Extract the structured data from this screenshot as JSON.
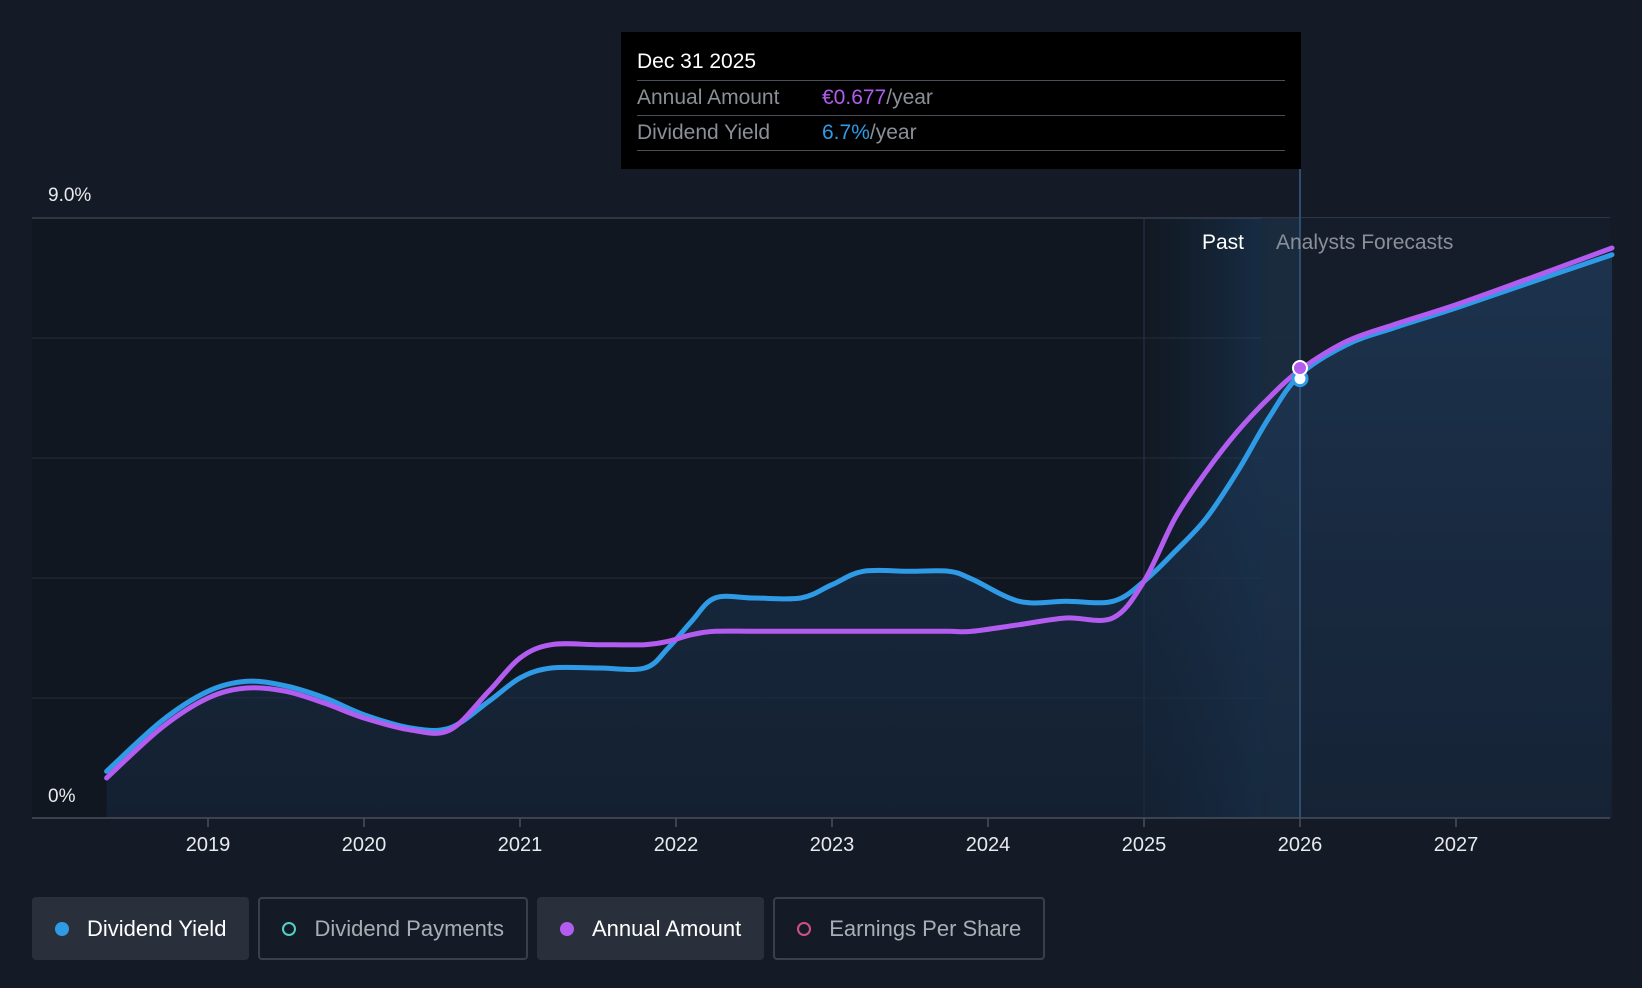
{
  "chart_data": {
    "type": "line",
    "y_axis": {
      "min": 0,
      "max": 9.0,
      "top_label": "9.0%",
      "bottom_label": "0%"
    },
    "x_ticks": [
      "2019",
      "2020",
      "2021",
      "2022",
      "2023",
      "2024",
      "2025",
      "2026",
      "2027"
    ],
    "x_range": [
      2018.35,
      2028.0
    ],
    "regions": {
      "past_label": "Past",
      "forecast_label": "Analysts Forecasts",
      "divider_x": 2026.0
    },
    "series": [
      {
        "name": "Dividend Yield",
        "color": "#2f9be6",
        "x": [
          2018.35,
          2018.7,
          2019.0,
          2019.25,
          2019.5,
          2019.75,
          2020.0,
          2020.3,
          2020.55,
          2020.8,
          2021.0,
          2021.2,
          2021.5,
          2021.8,
          2021.95,
          2022.1,
          2022.25,
          2022.5,
          2022.8,
          2023.0,
          2023.2,
          2023.5,
          2023.75,
          2023.9,
          2024.2,
          2024.5,
          2024.8,
          2025.0,
          2025.2,
          2025.4,
          2025.6,
          2025.8,
          2026.0,
          2026.3,
          2026.6,
          2027.0,
          2027.5,
          2028.0
        ],
        "values": [
          0.7,
          1.45,
          1.9,
          2.05,
          1.98,
          1.8,
          1.55,
          1.35,
          1.35,
          1.75,
          2.1,
          2.25,
          2.25,
          2.25,
          2.55,
          2.95,
          3.3,
          3.3,
          3.3,
          3.5,
          3.7,
          3.7,
          3.7,
          3.58,
          3.25,
          3.25,
          3.25,
          3.55,
          4.0,
          4.5,
          5.2,
          6.0,
          6.65,
          7.1,
          7.35,
          7.65,
          8.05,
          8.45
        ]
      },
      {
        "name": "Annual Amount",
        "color": "#b35cf0",
        "x": [
          2018.35,
          2018.7,
          2019.0,
          2019.25,
          2019.5,
          2019.75,
          2020.0,
          2020.3,
          2020.55,
          2020.8,
          2021.0,
          2021.2,
          2021.5,
          2021.8,
          2021.95,
          2022.1,
          2022.25,
          2022.5,
          2022.8,
          2023.0,
          2023.2,
          2023.5,
          2023.75,
          2023.9,
          2024.2,
          2024.5,
          2024.8,
          2025.0,
          2025.2,
          2025.4,
          2025.6,
          2025.8,
          2026.0,
          2026.3,
          2026.6,
          2027.0,
          2027.5,
          2028.0
        ],
        "values": [
          0.6,
          1.35,
          1.8,
          1.95,
          1.9,
          1.72,
          1.5,
          1.32,
          1.32,
          1.9,
          2.4,
          2.6,
          2.6,
          2.6,
          2.65,
          2.75,
          2.8,
          2.8,
          2.8,
          2.8,
          2.8,
          2.8,
          2.8,
          2.8,
          2.9,
          3.0,
          3.0,
          3.55,
          4.5,
          5.2,
          5.8,
          6.3,
          6.72,
          7.15,
          7.4,
          7.7,
          8.12,
          8.55
        ]
      }
    ],
    "highlight": {
      "x": 2026.0,
      "series_values": [
        6.65,
        6.72
      ]
    }
  },
  "tooltip": {
    "date": "Dec 31 2025",
    "rows": [
      {
        "label": "Annual Amount",
        "value": "€0.677",
        "unit": "/year"
      },
      {
        "label": "Dividend Yield",
        "value": "6.7%",
        "unit": "/year"
      }
    ]
  },
  "legend": {
    "items": [
      {
        "label": "Dividend Yield",
        "color": "#2f9be6"
      },
      {
        "label": "Dividend Payments",
        "color": "#4fd1c5"
      },
      {
        "label": "Annual Amount",
        "color": "#b35cf0"
      },
      {
        "label": "Earnings Per Share",
        "color": "#d14f8a"
      }
    ]
  }
}
